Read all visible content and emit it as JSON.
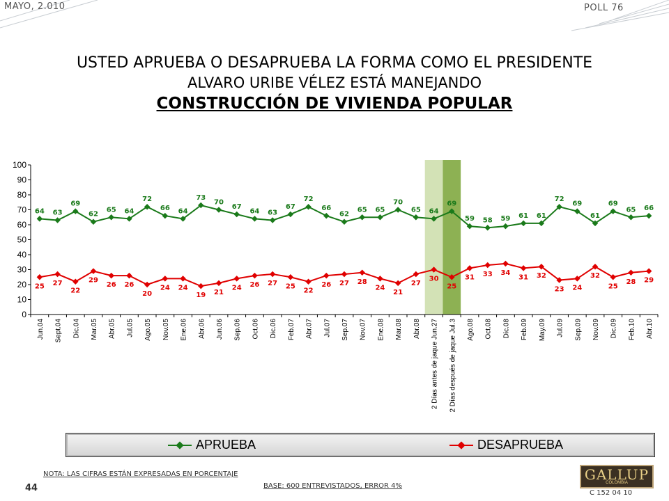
{
  "header": {
    "date": "MAYO, 2.010",
    "poll": "POLL 76"
  },
  "title": {
    "line1": "USTED APRUEBA O DESAPRUEBA LA FORMA COMO EL PRESIDENTE",
    "line2": "ALVARO URIBE VÉLEZ ESTÁ MANEJANDO",
    "line3": "CONSTRUCCIÓN DE VIVIENDA POPULAR"
  },
  "chart_data": {
    "type": "line",
    "categories": [
      "Jun.04",
      "Sept.04",
      "Dic.04",
      "Mar.05",
      "Abr.05",
      "Jul.05",
      "Ago.05",
      "Nov.05",
      "Ene.06",
      "Abr.06",
      "Jun.06",
      "Sep.06",
      "Oct.06",
      "Dic.06",
      "Feb.07",
      "Abr.07",
      "Jul.07",
      "Sep.07",
      "Nov.07",
      "Ene.08",
      "Mar.08",
      "Abr.08",
      "2 Días antes de jaque Jun.27",
      "2 Días después de jaque Jul.3",
      "Ago.08",
      "Oct.08",
      "Dic.08",
      "Feb.09",
      "May.09",
      "Jul.09",
      "Sep.09",
      "Nov.09",
      "Dic.09",
      "Feb.10",
      "Abr.10"
    ],
    "series": [
      {
        "name": "APRUEBA",
        "color": "#1a7a1a",
        "values": [
          64,
          63,
          69,
          62,
          65,
          64,
          72,
          66,
          64,
          73,
          70,
          67,
          64,
          63,
          67,
          72,
          66,
          62,
          65,
          65,
          70,
          65,
          64,
          69,
          59,
          58,
          59,
          61,
          61,
          72,
          69,
          61,
          69,
          65,
          66
        ]
      },
      {
        "name": "DESAPRUEBA",
        "color": "#e00000",
        "values": [
          25,
          27,
          22,
          29,
          26,
          26,
          20,
          24,
          24,
          19,
          21,
          24,
          26,
          27,
          25,
          22,
          26,
          27,
          28,
          24,
          21,
          27,
          30,
          25,
          31,
          33,
          34,
          31,
          32,
          23,
          24,
          32,
          25,
          28,
          29
        ]
      }
    ],
    "yticks": [
      0,
      10,
      20,
      30,
      40,
      50,
      60,
      70,
      80,
      90,
      100
    ],
    "ylim": [
      0,
      100
    ],
    "highlight": [
      {
        "category_index": 22,
        "color": "#d3e2b6"
      },
      {
        "category_index": 23,
        "color": "#8db153"
      }
    ]
  },
  "legend": {
    "aprueba": "APRUEBA",
    "desaprueba": "DESAPRUEBA"
  },
  "footer": {
    "note": "NOTA: LAS CIFRAS ESTÁN EXPRESADAS EN PORCENTAJE",
    "page_number": "44",
    "base": "BASE: 600 ENTREVISTADOS, ERROR 4%",
    "logo_main": "GALLUP",
    "logo_sub": "COLOMBIA",
    "code": "C 152 04 10"
  }
}
